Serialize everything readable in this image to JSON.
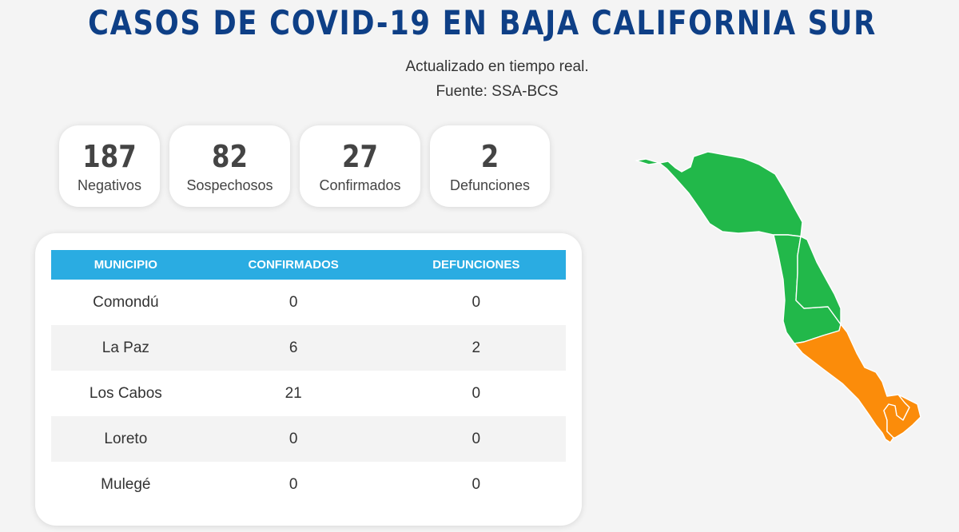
{
  "header": {
    "title": "CASOS DE COVID-19 EN BAJA CALIFORNIA SUR",
    "updated": "Actualizado en tiempo real.",
    "source": "Fuente: SSA-BCS"
  },
  "stats": [
    {
      "value": "187",
      "label": "Negativos"
    },
    {
      "value": "82",
      "label": "Sospechosos"
    },
    {
      "value": "27",
      "label": "Confirmados"
    },
    {
      "value": "2",
      "label": "Defunciones"
    }
  ],
  "table": {
    "headers": [
      "MUNICIPIO",
      "CONFIRMADOS",
      "DEFUNCIONES"
    ],
    "rows": [
      [
        "Comondú",
        "0",
        "0"
      ],
      [
        "La Paz",
        "6",
        "2"
      ],
      [
        "Los Cabos",
        "21",
        "0"
      ],
      [
        "Loreto",
        "0",
        "0"
      ],
      [
        "Mulegé",
        "0",
        "0"
      ]
    ]
  },
  "map": {
    "colors": {
      "no_cases": "#22b84a",
      "with_cases": "#fb8c0a",
      "border": "#ffffff"
    }
  }
}
